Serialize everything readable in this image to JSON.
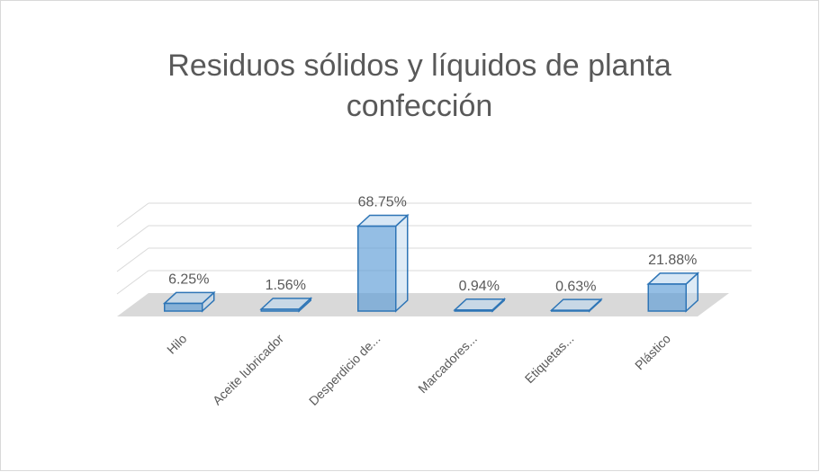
{
  "chart_data": {
    "type": "bar3d",
    "title": "Residuos sólidos y líquidos de planta confección",
    "categories": [
      "Hilo",
      "Aceite lubricador",
      "Desperdicio de...",
      "Marcadores...",
      "Etiquetas...",
      "Plástico"
    ],
    "values": [
      6.25,
      1.56,
      68.75,
      0.94,
      0.63,
      21.88
    ],
    "value_labels": [
      "6.25%",
      "1.56%",
      "68.75%",
      "0.94%",
      "0.63%",
      "21.88%"
    ],
    "color": "#5b9bd5",
    "ylim": [
      0,
      80
    ],
    "yticks": [
      0,
      20,
      40,
      60,
      80
    ],
    "grid": true
  }
}
